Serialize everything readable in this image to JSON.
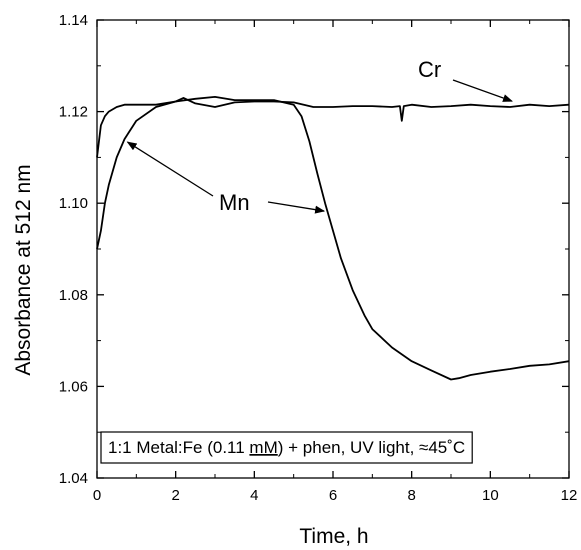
{
  "chart_data": {
    "type": "line",
    "xlabel": "Time, h",
    "ylabel": "Absorbance at 512 nm",
    "xlim": [
      0,
      12
    ],
    "ylim": [
      1.04,
      1.14
    ],
    "x_ticks": [
      0,
      2,
      4,
      6,
      8,
      10,
      12
    ],
    "y_ticks": [
      1.04,
      1.06,
      1.08,
      1.1,
      1.12,
      1.14
    ],
    "x_tick_labels": [
      "0",
      "2",
      "4",
      "6",
      "8",
      "10",
      "12"
    ],
    "y_tick_labels": [
      "1.04",
      "1.06",
      "1.08",
      "1.10",
      "1.12",
      "1.14"
    ],
    "grid": false,
    "line_color": "#000000",
    "series": [
      {
        "name": "Cr",
        "x": [
          0,
          0.1,
          0.2,
          0.3,
          0.5,
          0.7,
          1.0,
          1.5,
          2.0,
          2.2,
          2.5,
          3.0,
          3.5,
          4.0,
          4.5,
          5.0,
          5.5,
          6.0,
          6.5,
          7.0,
          7.5,
          7.7,
          7.75,
          7.8,
          8.0,
          8.5,
          9.0,
          9.5,
          10.0,
          10.5,
          11.0,
          11.5,
          12.0
        ],
        "y": [
          1.11,
          1.117,
          1.119,
          1.12,
          1.121,
          1.1215,
          1.1215,
          1.1215,
          1.1222,
          1.123,
          1.1218,
          1.121,
          1.122,
          1.1222,
          1.1222,
          1.122,
          1.121,
          1.121,
          1.1212,
          1.1212,
          1.121,
          1.1212,
          1.118,
          1.1212,
          1.1215,
          1.121,
          1.1212,
          1.1215,
          1.1212,
          1.121,
          1.1215,
          1.1212,
          1.1215
        ]
      },
      {
        "name": "Mn",
        "x": [
          0,
          0.1,
          0.2,
          0.3,
          0.5,
          0.7,
          1.0,
          1.5,
          2.0,
          2.5,
          3.0,
          3.5,
          4.0,
          4.5,
          5.0,
          5.2,
          5.4,
          5.6,
          5.8,
          6.0,
          6.2,
          6.5,
          6.8,
          7.0,
          7.5,
          8.0,
          8.5,
          9.0,
          9.2,
          9.5,
          10.0,
          10.5,
          11.0,
          11.5,
          12.0
        ],
        "y": [
          1.09,
          1.094,
          1.1,
          1.104,
          1.11,
          1.114,
          1.118,
          1.121,
          1.1222,
          1.1228,
          1.1232,
          1.1225,
          1.1225,
          1.1225,
          1.1215,
          1.119,
          1.1135,
          1.1065,
          1.1,
          1.094,
          1.088,
          1.081,
          1.0755,
          1.0725,
          1.0685,
          1.0655,
          1.0635,
          1.0615,
          1.0618,
          1.0625,
          1.0632,
          1.0638,
          1.0645,
          1.0648,
          1.0655
        ]
      }
    ],
    "annotations": {
      "cr_label": "Cr",
      "mn_label": "Mn",
      "condition_pre": "1:1 Metal:Fe (0.11 ",
      "condition_unit": "mM",
      "condition_post": ") + phen, UV light, ≈45˚C"
    }
  }
}
